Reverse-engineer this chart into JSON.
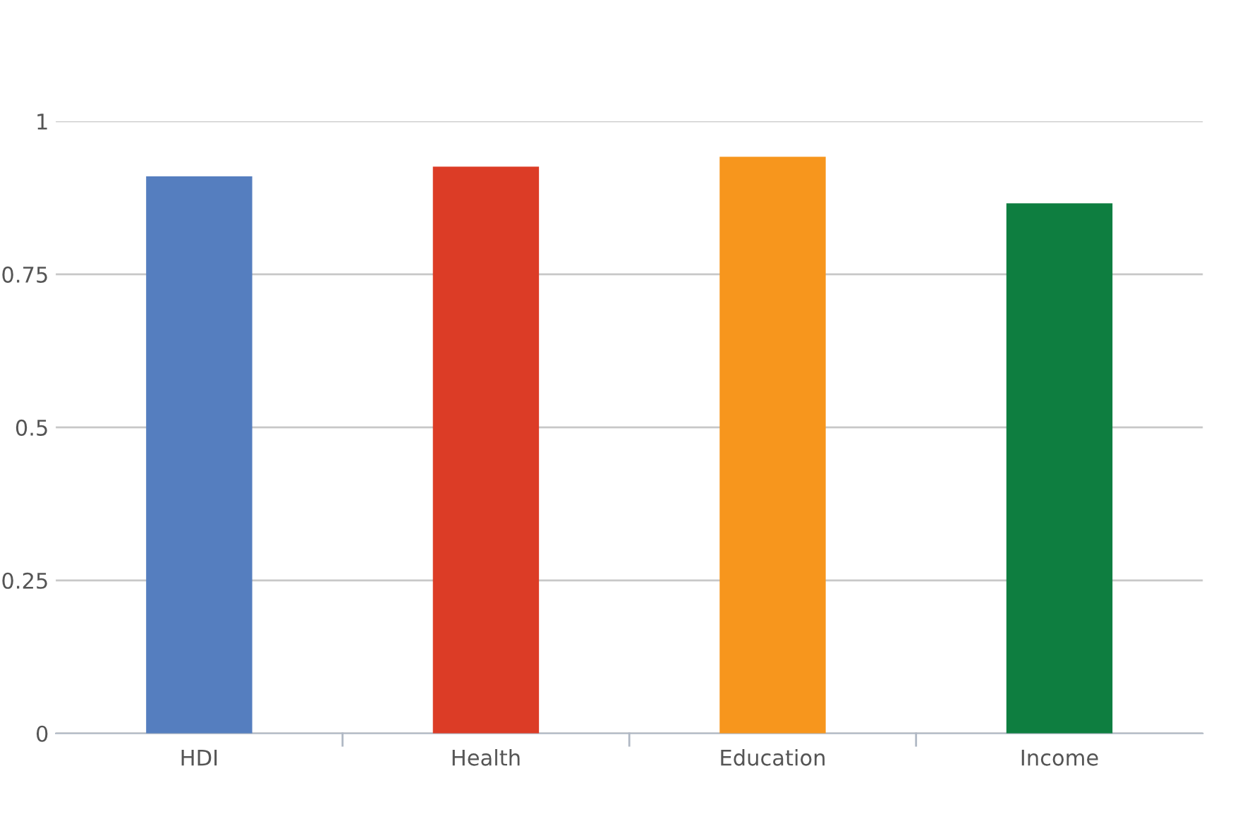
{
  "chart_data": {
    "type": "bar",
    "categories": [
      "HDI",
      "Health",
      "Education",
      "Income"
    ],
    "values": [
      0.91,
      0.926,
      0.942,
      0.866
    ],
    "colors": [
      "#557ebf",
      "#dc3c26",
      "#f7961d",
      "#0e7e40"
    ],
    "ylim": [
      0,
      1
    ],
    "yticks": [
      0,
      0.25,
      0.5,
      0.75,
      1
    ],
    "grid": "y"
  }
}
